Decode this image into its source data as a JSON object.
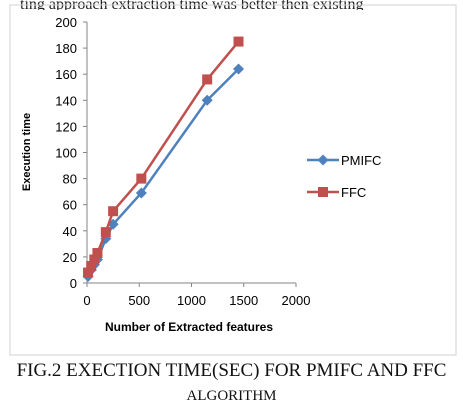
{
  "page": {
    "top_fragment": "ting approach extraction time was better then existing",
    "caption_line1": "FIG.2 EXECTION TIME(SEC) FOR PMIFC AND FFC",
    "caption_line2": "ALGORITHM"
  },
  "chart_data": {
    "type": "line",
    "title": "",
    "xlabel": "Number of Extracted features",
    "ylabel": "Execution time",
    "xlim": [
      0,
      2000
    ],
    "ylim": [
      0,
      200
    ],
    "xticks": [
      0,
      500,
      1000,
      1500,
      2000
    ],
    "yticks": [
      0,
      20,
      40,
      60,
      80,
      100,
      120,
      140,
      160,
      180,
      200
    ],
    "grid": false,
    "legend": "right",
    "series": [
      {
        "name": "PMIFC",
        "color": "#4f81bd",
        "marker": "diamond",
        "x": [
          10,
          40,
          70,
          100,
          180,
          250,
          520,
          1150,
          1450
        ],
        "y": [
          5,
          10,
          14,
          18,
          34,
          45,
          69,
          140,
          164
        ]
      },
      {
        "name": "FFC",
        "color": "#c0504d",
        "marker": "square",
        "x": [
          10,
          40,
          70,
          100,
          180,
          250,
          520,
          1150,
          1450
        ],
        "y": [
          8,
          13,
          18,
          23,
          39,
          55,
          80,
          156,
          185
        ]
      }
    ]
  }
}
